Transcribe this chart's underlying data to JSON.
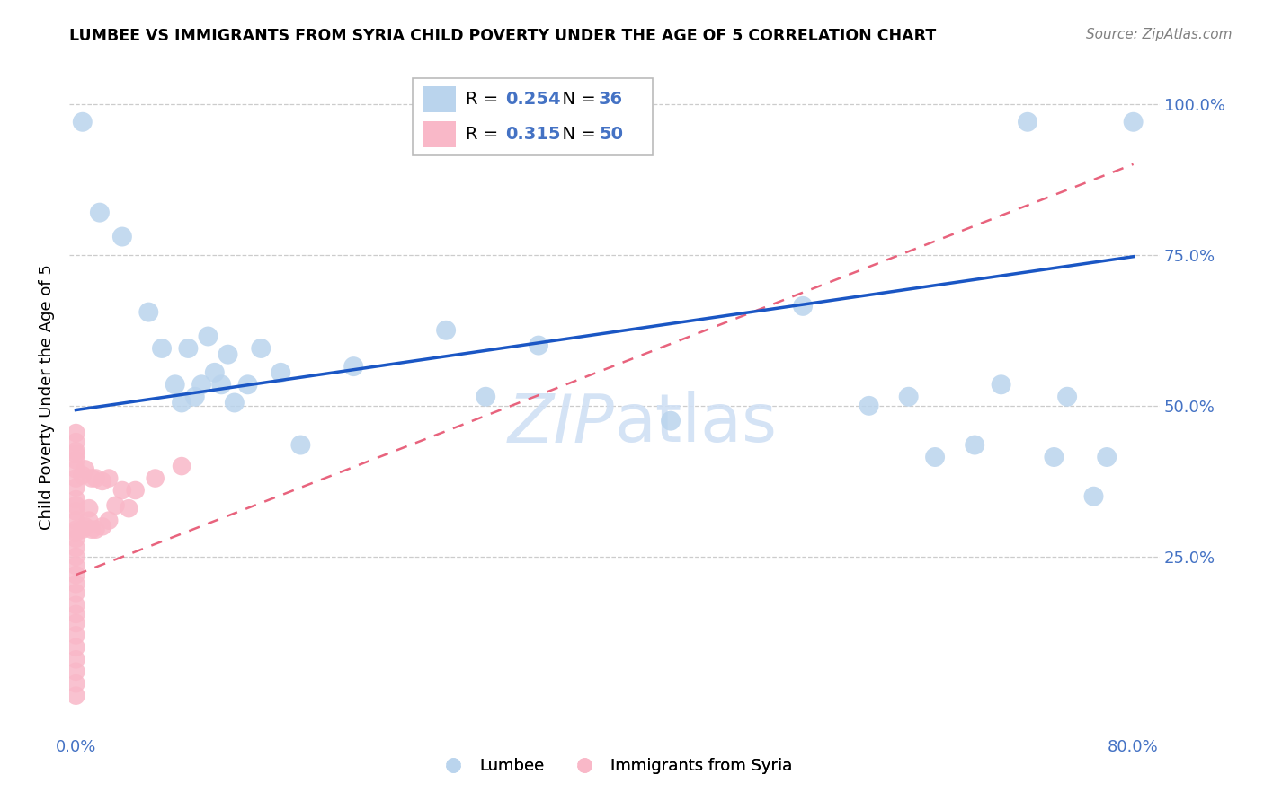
{
  "title": "LUMBEE VS IMMIGRANTS FROM SYRIA CHILD POVERTY UNDER THE AGE OF 5 CORRELATION CHART",
  "source": "Source: ZipAtlas.com",
  "ylabel": "Child Poverty Under the Age of 5",
  "xlim": [
    -0.005,
    0.82
  ],
  "ylim": [
    -0.04,
    1.07
  ],
  "xticks": [
    0.0,
    0.1,
    0.2,
    0.3,
    0.4,
    0.5,
    0.6,
    0.7,
    0.8
  ],
  "xticklabels": [
    "0.0%",
    "",
    "",
    "",
    "",
    "",
    "",
    "",
    "80.0%"
  ],
  "ytick_positions": [
    0.25,
    0.5,
    0.75,
    1.0
  ],
  "yticklabels": [
    "25.0%",
    "50.0%",
    "75.0%",
    "100.0%"
  ],
  "lumbee_R": 0.254,
  "lumbee_N": 36,
  "syria_R": 0.315,
  "syria_N": 50,
  "lumbee_color": "#bad4ed",
  "syria_color": "#f9b8c8",
  "lumbee_line_color": "#1a56c4",
  "syria_line_color": "#e8637d",
  "blue_text_color": "#4472c4",
  "watermark_color": "#d0e0f4",
  "lumbee_x": [
    0.005,
    0.018,
    0.035,
    0.055,
    0.065,
    0.075,
    0.08,
    0.085,
    0.09,
    0.095,
    0.1,
    0.105,
    0.11,
    0.115,
    0.12,
    0.13,
    0.14,
    0.155,
    0.17,
    0.21,
    0.28,
    0.31,
    0.35,
    0.45,
    0.55,
    0.6,
    0.63,
    0.65,
    0.68,
    0.7,
    0.72,
    0.74,
    0.75,
    0.77,
    0.78,
    0.8
  ],
  "lumbee_y": [
    0.97,
    0.82,
    0.78,
    0.655,
    0.595,
    0.535,
    0.505,
    0.595,
    0.515,
    0.535,
    0.615,
    0.555,
    0.535,
    0.585,
    0.505,
    0.535,
    0.595,
    0.555,
    0.435,
    0.565,
    0.625,
    0.515,
    0.6,
    0.475,
    0.665,
    0.5,
    0.515,
    0.415,
    0.435,
    0.535,
    0.97,
    0.415,
    0.515,
    0.35,
    0.415,
    0.97
  ],
  "syria_x": [
    0.0,
    0.0,
    0.0,
    0.0,
    0.0,
    0.0,
    0.0,
    0.0,
    0.0,
    0.0,
    0.0,
    0.0,
    0.0,
    0.0,
    0.0,
    0.0,
    0.0,
    0.0,
    0.0,
    0.0,
    0.0,
    0.0,
    0.0,
    0.0,
    0.0,
    0.0,
    0.0,
    0.0,
    0.0,
    0.0,
    0.005,
    0.005,
    0.007,
    0.007,
    0.01,
    0.01,
    0.012,
    0.012,
    0.015,
    0.015,
    0.02,
    0.02,
    0.025,
    0.025,
    0.03,
    0.035,
    0.04,
    0.045,
    0.06,
    0.08
  ],
  "syria_y": [
    0.02,
    0.04,
    0.06,
    0.08,
    0.1,
    0.12,
    0.14,
    0.155,
    0.17,
    0.19,
    0.205,
    0.22,
    0.235,
    0.25,
    0.265,
    0.28,
    0.295,
    0.31,
    0.325,
    0.345,
    0.365,
    0.38,
    0.395,
    0.41,
    0.425,
    0.44,
    0.455,
    0.29,
    0.335,
    0.42,
    0.295,
    0.385,
    0.3,
    0.395,
    0.31,
    0.33,
    0.295,
    0.38,
    0.295,
    0.38,
    0.3,
    0.375,
    0.31,
    0.38,
    0.335,
    0.36,
    0.33,
    0.36,
    0.38,
    0.4
  ],
  "lumbee_line_x": [
    0.0,
    0.8
  ],
  "lumbee_line_y": [
    0.493,
    0.747
  ],
  "syria_line_x": [
    0.0,
    0.8
  ],
  "syria_line_y": [
    0.22,
    0.9
  ]
}
